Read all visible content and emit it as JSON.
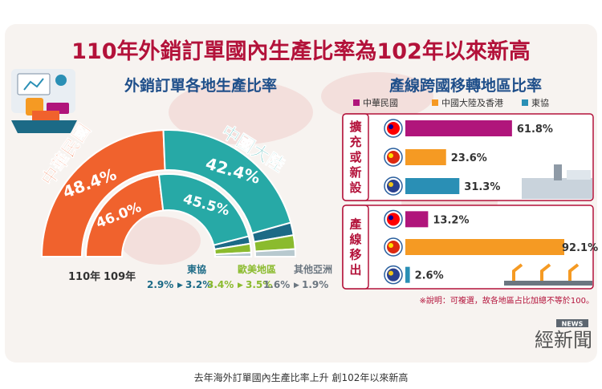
{
  "title": "110年外銷訂單國內生產比率為102年以來新高",
  "caption": "去年海外訂單國內生產比率上升 創102年以來新高",
  "logo_text": "經新聞",
  "logo_badge": "NEWS",
  "colors": {
    "title": "#b3123a",
    "taiwan": "#f0622d",
    "china": "#27a9a6",
    "asean": "#1c6a86",
    "western": "#8bbb2e",
    "other_asia": "#b8c9cf",
    "magenta": "#b0157b",
    "orange": "#f59a23",
    "teal_bar": "#2a8fb5",
    "header_text": "#1f4f8a",
    "box_border": "#b3123a"
  },
  "chart_data": [
    {
      "type": "pie",
      "subtype": "half-donut",
      "title": "外銷訂單各地生產比率",
      "rings": [
        {
          "name": "110年",
          "slices": [
            {
              "label": "中華民國",
              "value": 48.4,
              "display": "48.4%"
            },
            {
              "label": "中國大陸",
              "value": 42.4,
              "display": "42.4%"
            },
            {
              "label": "東協",
              "value": 3.2,
              "display": "3.2%"
            },
            {
              "label": "歐美地區",
              "value": 3.5,
              "display": "3.5%"
            },
            {
              "label": "其他亞洲",
              "value": 1.9,
              "display": "1.9%"
            }
          ]
        },
        {
          "name": "109年",
          "slices": [
            {
              "label": "中華民國",
              "value": 46.0,
              "display": "46.0%"
            },
            {
              "label": "中國大陸",
              "value": 45.5,
              "display": "45.5%"
            },
            {
              "label": "東協",
              "value": 2.9,
              "display": "2.9%"
            },
            {
              "label": "歐美地區",
              "value": 3.4,
              "display": "3.4%"
            },
            {
              "label": "其他亞洲",
              "value": 1.6,
              "display": "1.6%"
            }
          ]
        }
      ],
      "ring_labels": [
        "110年",
        "109年"
      ],
      "region_labels": [
        "中華民國",
        "中國大陸"
      ],
      "small_regions": [
        {
          "label": "東協",
          "from": "2.9%",
          "to": "3.2%"
        },
        {
          "label": "歐美地區",
          "from": "3.4%",
          "to": "3.5%"
        },
        {
          "label": "其他亞洲",
          "from": "1.6%",
          "to": "1.9%"
        }
      ]
    },
    {
      "type": "bar",
      "orientation": "horizontal",
      "title": "產線跨國移轉地區比率",
      "legend": [
        "中華民國",
        "中國大陸及香港",
        "東協"
      ],
      "legend_position": "top",
      "xlim": [
        0,
        100
      ],
      "groups": [
        {
          "label": "擴充或新設",
          "values": [
            61.8,
            23.6,
            31.3
          ],
          "display": [
            "61.8%",
            "23.6%",
            "31.3%"
          ]
        },
        {
          "label": "產線移出",
          "values": [
            13.2,
            92.1,
            2.6
          ],
          "display": [
            "13.2%",
            "92.1%",
            "2.6%"
          ]
        }
      ],
      "note": "※說明：可複選，故各地區占比加總不等於100。"
    }
  ]
}
